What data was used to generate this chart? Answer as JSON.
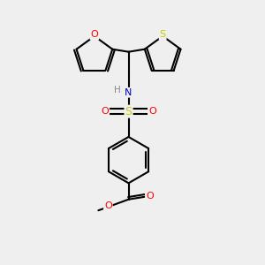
{
  "bg_color": "#efefef",
  "bond_color": "#000000",
  "bond_width": 1.5,
  "atom_colors": {
    "O": "#ff0000",
    "N": "#0000cc",
    "S_sulfonamide": "#cccc00",
    "S_thiophene": "#cccc00",
    "H": "#888888",
    "C": "#000000"
  },
  "figsize": [
    3.0,
    3.0
  ],
  "dpi": 100
}
